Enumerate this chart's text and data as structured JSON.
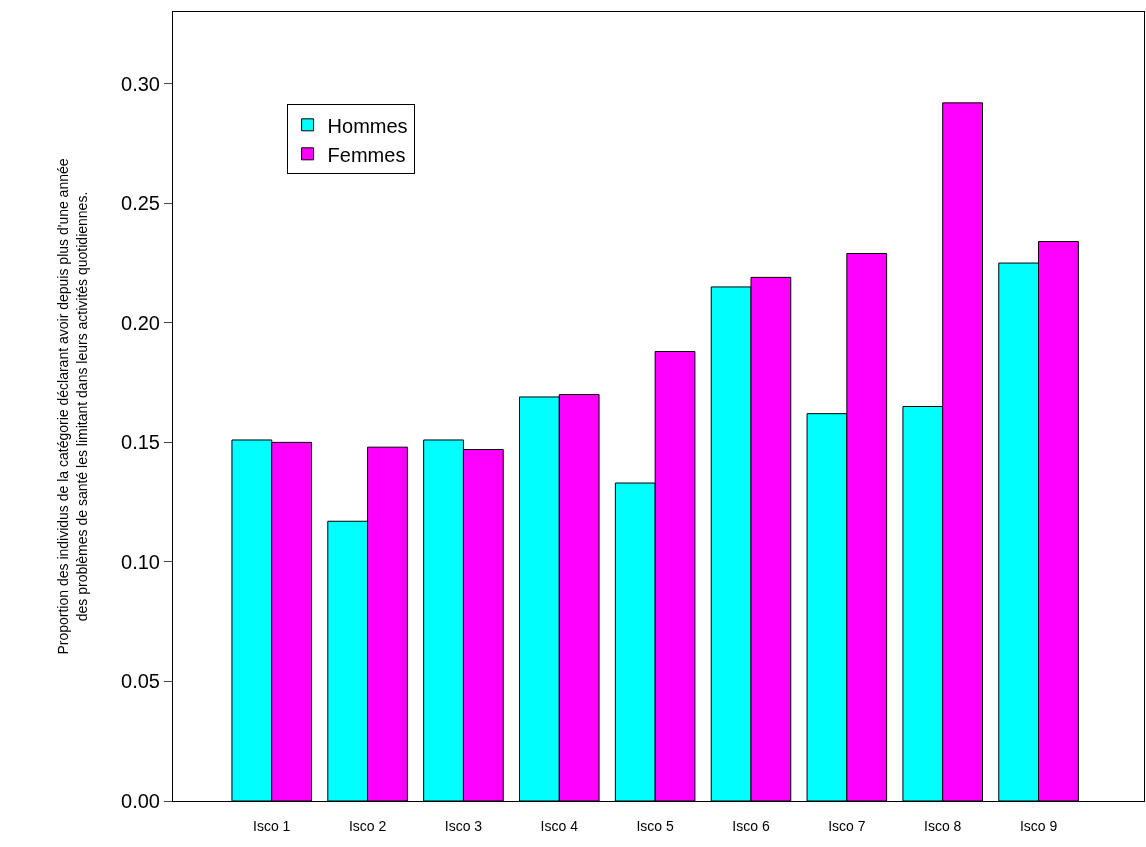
{
  "chart_data": {
    "type": "bar",
    "ylabel": "Proportion des individus de la catégorie déclarant avoir depuis plus d'une année\ndes problèmes de santé les limitant dans leurs activités quotidiennes.",
    "categories": [
      "Isco 1",
      "Isco 2",
      "Isco 3",
      "Isco 4",
      "Isco 5",
      "Isco 6",
      "Isco 7",
      "Isco 8",
      "Isco 9"
    ],
    "series": [
      {
        "name": "Hommes",
        "color": "#00ffff",
        "values": [
          0.151,
          0.117,
          0.151,
          0.169,
          0.133,
          0.215,
          0.162,
          0.165,
          0.225
        ]
      },
      {
        "name": "Femmes",
        "color": "#ff00ff",
        "values": [
          0.15,
          0.148,
          0.147,
          0.17,
          0.188,
          0.219,
          0.229,
          0.292,
          0.234
        ]
      }
    ],
    "ylim": [
      0,
      0.33
    ],
    "yticks": [
      {
        "value": 0,
        "label": "0.00"
      },
      {
        "value": 0.05,
        "label": "0.05"
      },
      {
        "value": 0.1,
        "label": "0.10"
      },
      {
        "value": 0.15,
        "label": "0.15"
      },
      {
        "value": 0.2,
        "label": "0.20"
      },
      {
        "value": 0.25,
        "label": "0.25"
      },
      {
        "value": 0.3,
        "label": "0.30"
      }
    ],
    "legend": "top left"
  }
}
